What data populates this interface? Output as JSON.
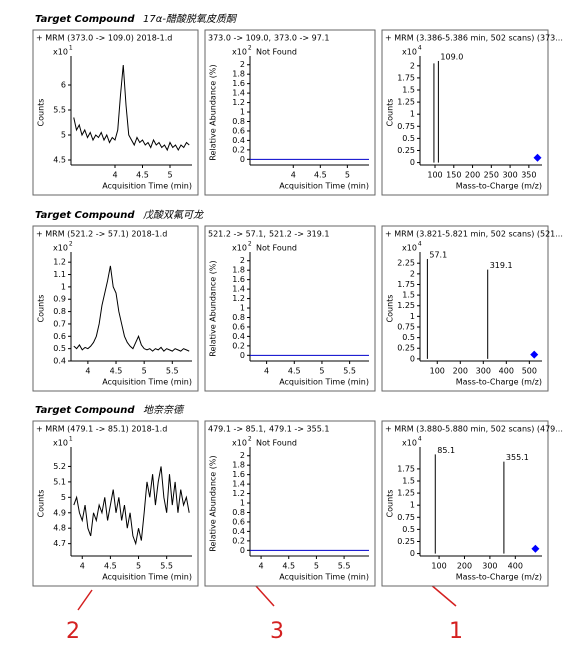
{
  "sections": [
    {
      "label": "Target Compound",
      "compound": "17α-醋酸脱氧皮质酮"
    },
    {
      "label": "Target Compound",
      "compound": "戊酸双氟可龙"
    },
    {
      "label": "Target Compound",
      "compound": "地奈奈德"
    }
  ],
  "annotations": [
    "2",
    "3",
    "1"
  ],
  "chart_data": [
    {
      "type": "line",
      "header": "+ MRM (373.0 -> 109.0) 2018-1.d",
      "multiplier": "x10",
      "exponent": "1",
      "ylabel": "Counts",
      "xlabel": "Acquisition Time (min)",
      "color": "#000000",
      "x": [
        3.25,
        3.3,
        3.35,
        3.4,
        3.45,
        3.5,
        3.55,
        3.6,
        3.65,
        3.7,
        3.75,
        3.8,
        3.85,
        3.9,
        3.95,
        4.0,
        4.05,
        4.1,
        4.15,
        4.2,
        4.25,
        4.3,
        4.35,
        4.4,
        4.45,
        4.5,
        4.55,
        4.6,
        4.65,
        4.7,
        4.75,
        4.8,
        4.85,
        4.9,
        4.95,
        5.0,
        5.05,
        5.1,
        5.15,
        5.2,
        5.25,
        5.3,
        5.35
      ],
      "values": [
        5.35,
        5.1,
        5.2,
        5.0,
        5.1,
        4.95,
        5.05,
        4.9,
        5.0,
        4.95,
        5.05,
        4.9,
        5.0,
        4.85,
        4.95,
        4.9,
        5.1,
        5.8,
        6.4,
        5.6,
        5.0,
        4.9,
        4.8,
        4.95,
        4.85,
        4.9,
        4.8,
        4.85,
        4.75,
        4.9,
        4.8,
        4.85,
        4.75,
        4.8,
        4.7,
        4.85,
        4.75,
        4.8,
        4.7,
        4.8,
        4.75,
        4.85,
        4.8
      ],
      "xlim": [
        3.2,
        5.4
      ],
      "ylim": [
        4.4,
        6.5
      ],
      "xticks": [
        4,
        4.5,
        5
      ],
      "yticks": [
        4.5,
        5,
        5.5,
        6
      ]
    },
    {
      "type": "line",
      "header": "373.0 -> 109.0,",
      "header_highlight": "373.0 -> 97.1",
      "status": "Not Found",
      "multiplier": "x10",
      "exponent": "2",
      "ylabel": "Relative Abundance (%)",
      "xlabel": "Acquisition Time (min)",
      "color": "#0000cc",
      "x": [
        3.2,
        5.4
      ],
      "values": [
        0,
        0
      ],
      "xlim": [
        3.2,
        5.4
      ],
      "ylim": [
        -0.12,
        2.1
      ],
      "xticks": [
        4,
        4.5,
        5
      ],
      "yticks": [
        0,
        0.2,
        0.4,
        0.6,
        0.8,
        1,
        1.2,
        1.4,
        1.6,
        1.8,
        2
      ]
    },
    {
      "type": "bar",
      "header": "+ MRM (3.386-5.386 min, 502 scans) (373...",
      "multiplier": "x10",
      "exponent": "4",
      "ylabel": "Counts",
      "xlabel": "Mass-to-Charge (m/z)",
      "color": "#000000",
      "x": [
        97.1,
        109.0
      ],
      "values": [
        2.05,
        2.1
      ],
      "x_labels": [
        null,
        "109.0"
      ],
      "marker": {
        "x": 373.0,
        "y": 0.1,
        "color": "#0000ff"
      },
      "xlim": [
        60,
        385
      ],
      "ylim": [
        -0.05,
        2.12
      ],
      "xticks": [
        100,
        150,
        200,
        250,
        300,
        350
      ],
      "yticks": [
        0,
        0.25,
        0.5,
        0.75,
        1,
        1.25,
        1.5,
        1.75,
        2
      ]
    },
    {
      "type": "line",
      "header": "+ MRM (521.2 -> 57.1) 2018-1.d",
      "multiplier": "x10",
      "exponent": "2",
      "ylabel": "Counts",
      "xlabel": "Acquisition Time (min)",
      "color": "#000000",
      "x": [
        3.75,
        3.8,
        3.85,
        3.9,
        3.95,
        4.0,
        4.05,
        4.1,
        4.15,
        4.2,
        4.25,
        4.3,
        4.35,
        4.4,
        4.45,
        4.5,
        4.55,
        4.6,
        4.65,
        4.7,
        4.75,
        4.8,
        4.85,
        4.9,
        4.95,
        5.0,
        5.05,
        5.1,
        5.15,
        5.2,
        5.25,
        5.3,
        5.35,
        5.4,
        5.45,
        5.5,
        5.55,
        5.6,
        5.65,
        5.7,
        5.75,
        5.8
      ],
      "values": [
        0.52,
        0.5,
        0.53,
        0.49,
        0.51,
        0.5,
        0.52,
        0.55,
        0.6,
        0.7,
        0.85,
        0.95,
        1.05,
        1.17,
        1.0,
        0.95,
        0.8,
        0.7,
        0.6,
        0.55,
        0.52,
        0.5,
        0.55,
        0.6,
        0.53,
        0.5,
        0.49,
        0.5,
        0.48,
        0.5,
        0.49,
        0.51,
        0.48,
        0.5,
        0.49,
        0.48,
        0.5,
        0.49,
        0.48,
        0.5,
        0.49,
        0.48
      ],
      "xlim": [
        3.7,
        5.85
      ],
      "ylim": [
        0.4,
        1.25
      ],
      "xticks": [
        4,
        4.5,
        5,
        5.5
      ],
      "yticks": [
        0.4,
        0.5,
        0.6,
        0.7,
        0.8,
        0.9,
        1,
        1.1,
        1.2
      ]
    },
    {
      "type": "line",
      "header": "521.2 -> 57.1,",
      "header_highlight": "521.2 -> 319.1",
      "status": "Not Found",
      "multiplier": "x10",
      "exponent": "2",
      "ylabel": "Relative Abundance (%)",
      "xlabel": "Acquisition Time (min)",
      "color": "#0000cc",
      "x": [
        3.7,
        5.85
      ],
      "values": [
        0,
        0
      ],
      "xlim": [
        3.7,
        5.85
      ],
      "ylim": [
        -0.12,
        2.1
      ],
      "xticks": [
        4,
        4.5,
        5,
        5.5
      ],
      "yticks": [
        0,
        0.2,
        0.4,
        0.6,
        0.8,
        1,
        1.2,
        1.4,
        1.6,
        1.8,
        2
      ]
    },
    {
      "type": "bar",
      "header": "+ MRM (3.821-5.821 min, 502 scans) (521...",
      "multiplier": "x10",
      "exponent": "4",
      "ylabel": "Counts",
      "xlabel": "Mass-to-Charge (m/z)",
      "color": "#000000",
      "x": [
        57.1,
        319.1
      ],
      "values": [
        2.35,
        2.1
      ],
      "x_labels": [
        "57.1",
        "319.1"
      ],
      "marker": {
        "x": 521.2,
        "y": 0.1,
        "color": "#0000ff"
      },
      "xlim": [
        25,
        555
      ],
      "ylim": [
        -0.05,
        2.42
      ],
      "xticks": [
        100,
        200,
        300,
        400,
        500
      ],
      "yticks": [
        0,
        0.25,
        0.5,
        0.75,
        1,
        1.25,
        1.5,
        1.75,
        2,
        2.25
      ]
    },
    {
      "type": "line",
      "header": "+ MRM (479.1 -> 85.1) 2018-1.d",
      "multiplier": "x10",
      "exponent": "1",
      "ylabel": "Counts",
      "xlabel": "Acquisition Time (min)",
      "color": "#000000",
      "x": [
        3.85,
        3.9,
        3.95,
        4.0,
        4.05,
        4.1,
        4.15,
        4.2,
        4.25,
        4.3,
        4.35,
        4.4,
        4.45,
        4.5,
        4.55,
        4.6,
        4.65,
        4.7,
        4.75,
        4.8,
        4.85,
        4.9,
        4.95,
        5.0,
        5.05,
        5.1,
        5.15,
        5.2,
        5.25,
        5.3,
        5.35,
        5.4,
        5.45,
        5.5,
        5.55,
        5.6,
        5.65,
        5.7,
        5.75,
        5.8,
        5.85,
        5.9
      ],
      "values": [
        4.95,
        5.0,
        4.9,
        4.85,
        4.95,
        4.8,
        4.75,
        4.9,
        4.85,
        4.95,
        4.9,
        5.0,
        4.85,
        4.95,
        5.05,
        4.9,
        5.0,
        4.85,
        4.95,
        4.8,
        4.9,
        4.75,
        4.7,
        4.8,
        4.72,
        4.9,
        5.1,
        5.0,
        5.15,
        4.95,
        5.1,
        5.2,
        5.0,
        4.9,
        5.15,
        4.95,
        5.1,
        4.9,
        5.05,
        4.95,
        5.0,
        4.9
      ],
      "xlim": [
        3.8,
        5.95
      ],
      "ylim": [
        4.62,
        5.3
      ],
      "xticks": [
        4,
        4.5,
        5,
        5.5
      ],
      "yticks": [
        4.7,
        4.8,
        4.9,
        5,
        5.1,
        5.2
      ]
    },
    {
      "type": "line",
      "header": "479.1 -> 85.1,",
      "header_highlight": "479.1 -> 355.1",
      "status": "Not Found",
      "multiplier": "x10",
      "exponent": "2",
      "ylabel": "Relative Abundance (%)",
      "xlabel": "Acquisition Time (min)",
      "color": "#0000cc",
      "x": [
        3.8,
        5.95
      ],
      "values": [
        0,
        0
      ],
      "xlim": [
        3.8,
        5.95
      ],
      "ylim": [
        -0.12,
        2.1
      ],
      "xticks": [
        4,
        4.5,
        5,
        5.5
      ],
      "yticks": [
        0,
        0.2,
        0.4,
        0.6,
        0.8,
        1,
        1.2,
        1.4,
        1.6,
        1.8,
        2
      ]
    },
    {
      "type": "bar",
      "header": "+ MRM (3.880-5.880 min, 502 scans) (479...",
      "multiplier": "x10",
      "exponent": "4",
      "ylabel": "Counts",
      "xlabel": "Mass-to-Charge (m/z)",
      "color": "#000000",
      "x": [
        85.1,
        355.1
      ],
      "values": [
        2.05,
        1.9
      ],
      "x_labels": [
        "85.1",
        "355.1"
      ],
      "marker": {
        "x": 479.1,
        "y": 0.1,
        "color": "#0000ff"
      },
      "xlim": [
        25,
        505
      ],
      "ylim": [
        -0.05,
        2.12
      ],
      "xticks": [
        100,
        200,
        300,
        400
      ],
      "yticks": [
        0,
        0.25,
        0.5,
        0.75,
        1,
        1.25,
        1.5,
        1.75
      ]
    }
  ]
}
